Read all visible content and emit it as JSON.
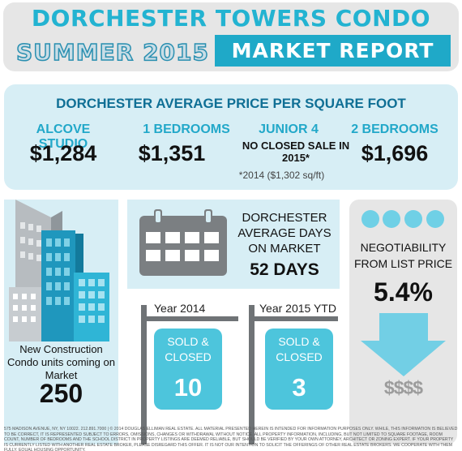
{
  "header": {
    "title": "DORCHESTER TOWERS CONDO",
    "season": "SUMMER 2015",
    "report": "MARKET REPORT"
  },
  "price_per_sqft": {
    "title": "DORCHESTER AVERAGE PRICE PER SQUARE FOOT",
    "columns": [
      {
        "label": "ALCOVE STUDIO",
        "value": "$1,284"
      },
      {
        "label": "1 BEDROOMS",
        "value": "$1,351"
      },
      {
        "label": "JUNIOR 4",
        "value": "NO CLOSED SALE IN 2015*"
      },
      {
        "label": "2 BEDROOMS",
        "value": "$1,696"
      }
    ],
    "footnote": "*2014 ($1,302 sq/ft)"
  },
  "new_construction": {
    "label": "New Construction Condo units coming on Market",
    "value": "250"
  },
  "days_on_market": {
    "label": "DORCHESTER AVERAGE DAYS ON MARKET",
    "value": "52 DAYS"
  },
  "sold": [
    {
      "year": "Year 2014",
      "label": "SOLD & CLOSED",
      "value": "10"
    },
    {
      "year": "Year 2015 YTD",
      "label": "SOLD & CLOSED",
      "value": "3"
    }
  ],
  "negotiability": {
    "label": "NEGOTIABILITY FROM LIST PRICE",
    "value": "5.4%",
    "symbol": "$$$$"
  },
  "footer": {
    "disclaimer": "575 MADISON AVENUE, NY, NY 10022. 212.891.7000 | © 2014 DOUGLAS ELLIMAN REAL ESTATE. ALL MATERIAL PRESENTED HEREIN IS INTENDED FOR INFORMATION PURPOSES ONLY. WHILE, THIS INFORMATION IS BELIEVED TO BE CORRECT, IT IS REPRESENTED SUBJECT TO ERRORS, OMISSIONS, CHANGES OR WITHDRAWAL WITHOUT NOTICE. ALL PROPERTY INFORMATION, INCLUDING, BUT NOT LIMITED TO SQUARE FOOTAGE, ROOM COUNT, NUMBER OF BEDROOMS AND THE SCHOOL DISTRICT IN PROPERTY LISTINGS ARE DEEMED RELIABLE, BUT SHOULD BE VERIFIED BY YOUR OWN ATTORNEY, ARCHITECT OR ZONING EXPERT. IF YOUR PROPERTY IS CURRENTLY LISTED WITH ANOTHER REAL ESTATE BROKER, PLEASE DISREGARD THIS OFFER. IT IS NOT OUR INTENTION TO SOLICIT THE OFFERINGS OF OTHER REAL ESTATE BROKERS. WE COOPERATE WITH THEM FULLY. EQUAL HOUSING OPPORTUNITY."
  },
  "colors": {
    "accent": "#23b3d1",
    "dark_blue": "#0f6f95",
    "panel_blue": "#d7eef5",
    "panel_gray": "#e6e6e6",
    "sold_box": "#4dc5dc"
  }
}
